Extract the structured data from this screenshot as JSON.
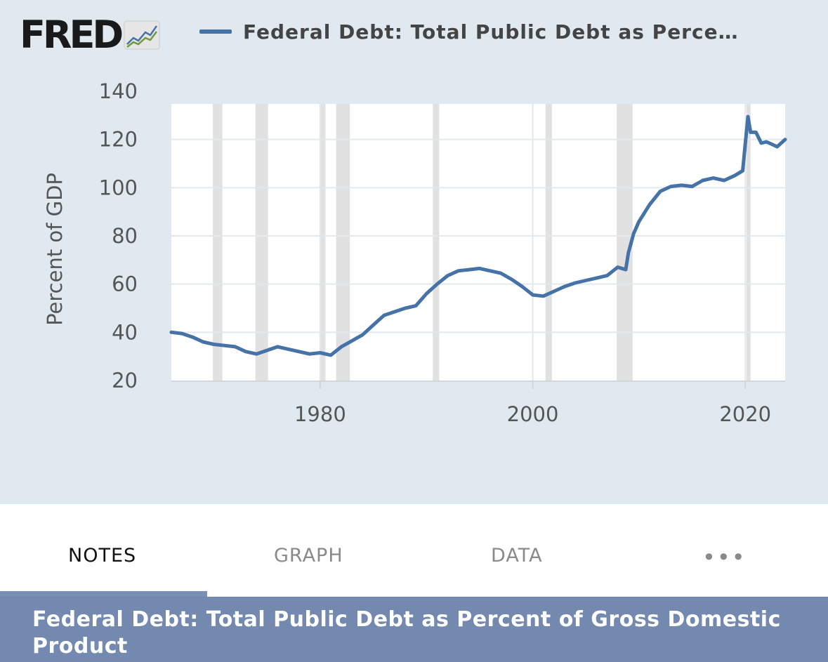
{
  "header": {
    "logo_text": "FRED",
    "logo_icon": "trend-lines-icon",
    "legend_label": "Federal Debt: Total Public Debt as Perce…",
    "legend_color": "#4572a7"
  },
  "tabs": [
    {
      "label": "NOTES",
      "active": true
    },
    {
      "label": "GRAPH",
      "active": false
    },
    {
      "label": "DATA",
      "active": false
    },
    {
      "label": "•••",
      "active": false,
      "icon": "more-icon"
    }
  ],
  "title_bar": {
    "text": "Federal Debt: Total Public Debt as Percent of Gross Domestic Product"
  },
  "colors": {
    "chart_background": "#e1e9f0",
    "plot_background": "#ffffff",
    "recession_shading": "#e1e1e1",
    "series_line": "#4572a7",
    "title_bar": "#7489b0",
    "active_tab_underline": "#7a8fb3"
  },
  "chart_data": {
    "type": "line",
    "title": "",
    "xlabel": "",
    "ylabel": "Percent of GDP",
    "xlim": [
      1966,
      2023.75
    ],
    "ylim": [
      20,
      140
    ],
    "x_ticks": [
      1980,
      2000,
      2020
    ],
    "y_ticks": [
      20,
      40,
      60,
      80,
      100,
      120,
      140
    ],
    "grid": true,
    "legend_position": "top",
    "recessions": [
      [
        1969.9,
        1970.8
      ],
      [
        1973.9,
        1975.1
      ],
      [
        1980.0,
        1980.5
      ],
      [
        1981.5,
        1982.8
      ],
      [
        1990.6,
        1991.2
      ],
      [
        2001.2,
        2001.8
      ],
      [
        2007.9,
        2009.4
      ],
      [
        2020.1,
        2020.3
      ]
    ],
    "series": [
      {
        "name": "Federal Debt: Total Public Debt as Percent of Gross Domestic Product",
        "x": [
          1966,
          1967,
          1968,
          1969,
          1970,
          1971,
          1972,
          1973,
          1974,
          1975,
          1976,
          1977,
          1978,
          1979,
          1980,
          1981,
          1982,
          1983,
          1984,
          1985,
          1986,
          1987,
          1988,
          1989,
          1990,
          1991,
          1992,
          1993,
          1994,
          1995,
          1996,
          1997,
          1998,
          1999,
          2000,
          2001,
          2002,
          2003,
          2004,
          2005,
          2006,
          2007,
          2008,
          2008.75,
          2009,
          2009.5,
          2010,
          2011,
          2012,
          2013,
          2014,
          2015,
          2016,
          2017,
          2018,
          2019,
          2019.75,
          2020.25,
          2020.5,
          2021,
          2021.5,
          2022,
          2022.5,
          2023,
          2023.75
        ],
        "values": [
          40,
          39.5,
          38,
          36,
          35,
          34.5,
          34,
          32,
          31,
          32.5,
          34,
          33,
          32,
          31,
          31.5,
          30.5,
          34,
          36.5,
          39,
          43,
          47,
          48.5,
          50,
          51,
          56,
          60,
          63.5,
          65.5,
          66,
          66.5,
          65.5,
          64.5,
          62,
          59,
          55.5,
          55,
          57,
          59,
          60.5,
          61.5,
          62.5,
          63.5,
          67,
          66,
          73,
          81,
          86,
          93,
          98.5,
          100.5,
          101,
          100.5,
          103,
          104,
          103,
          105,
          107,
          129.5,
          123,
          123,
          118.5,
          119,
          118,
          117,
          120
        ]
      }
    ]
  }
}
